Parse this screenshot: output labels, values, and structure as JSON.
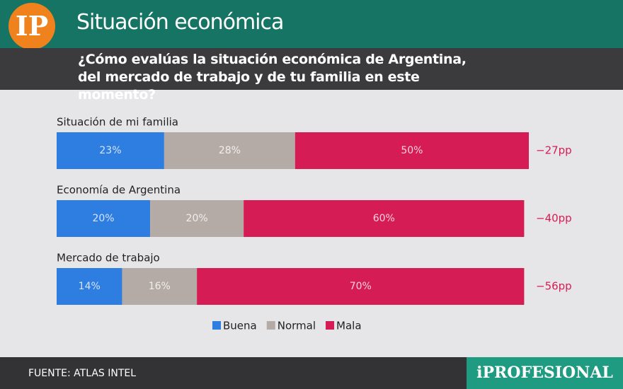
{
  "logo": "IP",
  "source": "FUENTE: ATLAS INTEL",
  "brand": "iPROFESIONAL",
  "chart_data": {
    "type": "stacked-bar-horizontal",
    "title": "Situación económica",
    "subtitle": "¿Cómo evalúas la situación económica de Argentina, del mercado de trabajo y de tu familia en este momento?",
    "categories": [
      "Situación de mi familia",
      "Economía de Argentina",
      "Mercado de trabajo"
    ],
    "series": [
      {
        "name": "Buena",
        "color": "#2e7de0",
        "values": [
          23,
          20,
          14
        ],
        "value_labels": [
          "23%",
          "20%",
          "14%"
        ]
      },
      {
        "name": "Normal",
        "color": "#b4aba6",
        "values": [
          28,
          20,
          16
        ],
        "value_labels": [
          "28%",
          "20%",
          "16%"
        ]
      },
      {
        "name": "Mala",
        "color": "#d61c55",
        "values": [
          50,
          60,
          70
        ],
        "value_labels": [
          "50%",
          "60%",
          "70%"
        ]
      }
    ],
    "net": {
      "color": "#d61c55",
      "values": [
        -27,
        -40,
        -56
      ],
      "value_labels": [
        "−27pp",
        "−40pp",
        "−56pp"
      ]
    }
  }
}
